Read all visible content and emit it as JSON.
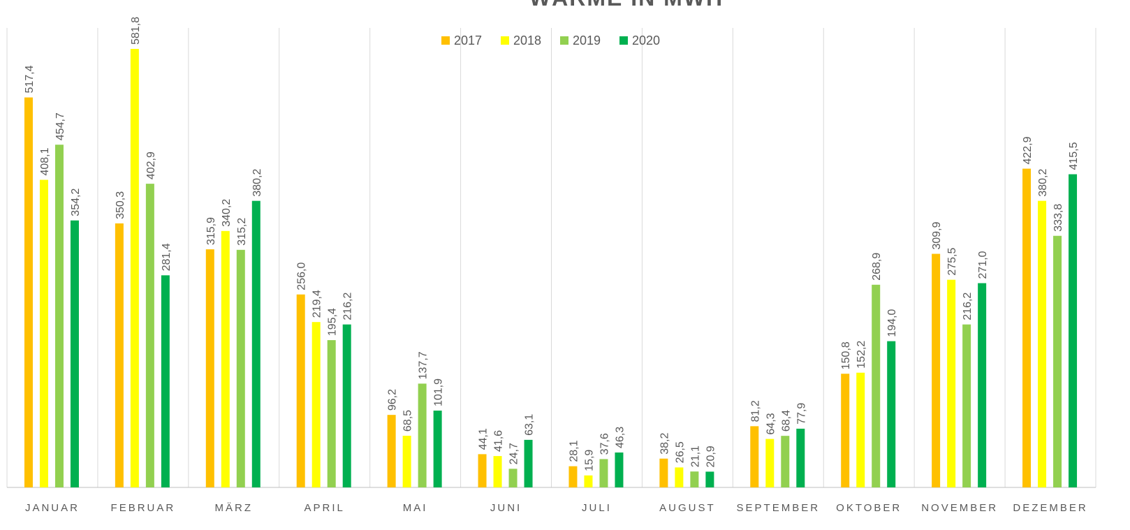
{
  "chart_data": {
    "type": "bar",
    "title": "WÄRME IN MWH",
    "categories": [
      "JANUAR",
      "FEBRUAR",
      "MÄRZ",
      "APRIL",
      "MAI",
      "JUNI",
      "JULI",
      "AUGUST",
      "SEPTEMBER",
      "OKTOBER",
      "NOVEMBER",
      "DEZEMBER"
    ],
    "ylim": [
      0,
      600
    ],
    "legend": "top",
    "series": [
      {
        "name": "2017",
        "color": "#FFC000",
        "values": [
          517.4,
          350.3,
          315.9,
          256.0,
          96.2,
          44.1,
          28.1,
          38.2,
          81.2,
          150.8,
          309.9,
          422.9
        ],
        "value_labels": [
          "517,4",
          "350,3",
          "315,9",
          "256,0",
          "96,2",
          "44,1",
          "28,1",
          "38,2",
          "81,2",
          "150,8",
          "309,9",
          "422,9"
        ]
      },
      {
        "name": "2018",
        "color": "#FFFF00",
        "values": [
          408.1,
          581.8,
          340.2,
          219.4,
          68.5,
          41.6,
          15.9,
          26.5,
          64.3,
          152.2,
          275.5,
          380.2
        ],
        "value_labels": [
          "408,1",
          "581,8",
          "340,2",
          "219,4",
          "68,5",
          "41,6",
          "15,9",
          "26,5",
          "64,3",
          "152,2",
          "275,5",
          "380,2"
        ]
      },
      {
        "name": "2019",
        "color": "#92D050",
        "values": [
          454.7,
          402.9,
          315.2,
          195.4,
          137.7,
          24.7,
          37.6,
          21.1,
          68.4,
          268.9,
          216.2,
          333.8
        ],
        "value_labels": [
          "454,7",
          "402,9",
          "315,2",
          "195,4",
          "137,7",
          "24,7",
          "37,6",
          "21,1",
          "68,4",
          "268,9",
          "216,2",
          "333,8"
        ]
      },
      {
        "name": "2020",
        "color": "#00B050",
        "values": [
          354.2,
          281.4,
          380.2,
          216.2,
          101.9,
          63.1,
          46.3,
          20.9,
          77.9,
          194.0,
          271.0,
          415.5
        ],
        "value_labels": [
          "354,2",
          "281,4",
          "380,2",
          "216,2",
          "101,9",
          "63,1",
          "46,3",
          "20,9",
          "77,9",
          "194,0",
          "271,0",
          "415,5"
        ]
      }
    ]
  }
}
